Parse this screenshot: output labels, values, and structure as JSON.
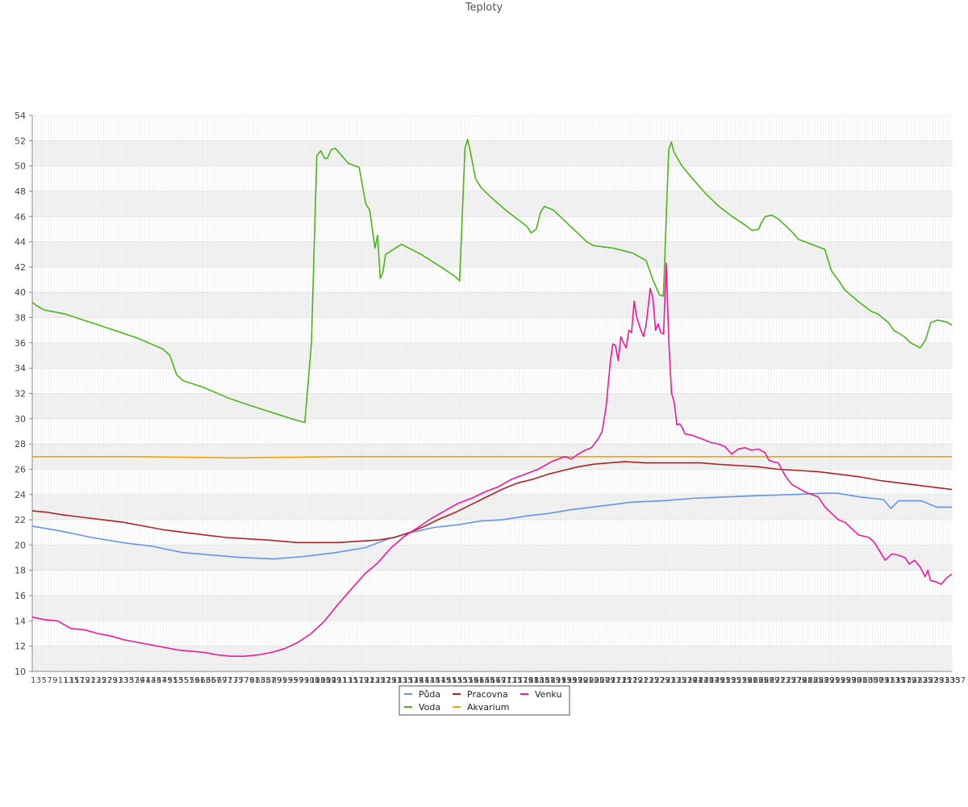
{
  "chart_data": {
    "type": "line",
    "title": "Teploty",
    "ylim": [
      10,
      54
    ],
    "yticks": [
      10,
      12,
      14,
      16,
      18,
      20,
      22,
      24,
      26,
      28,
      30,
      32,
      34,
      36,
      38,
      40,
      42,
      44,
      46,
      48,
      50,
      52,
      54
    ],
    "x": [
      1,
      337
    ],
    "x_tick_labels": "1 to 337 (sample index, all labels overlapping)",
    "grid": true,
    "legend_position": "bottom-center",
    "series": [
      {
        "name": "Půda",
        "color": "#6495ed",
        "points": [
          [
            1,
            21.5
          ],
          [
            20,
            21.1
          ],
          [
            40,
            20.6
          ],
          [
            60,
            20.2
          ],
          [
            80,
            19.9
          ],
          [
            100,
            19.4
          ],
          [
            120,
            19.2
          ],
          [
            140,
            19.0
          ],
          [
            160,
            18.9
          ],
          [
            180,
            19.1
          ],
          [
            200,
            19.4
          ],
          [
            220,
            19.8
          ],
          [
            235,
            20.5
          ],
          [
            250,
            21.0
          ],
          [
            265,
            21.4
          ],
          [
            280,
            21.6
          ],
          [
            295,
            21.9
          ],
          [
            310,
            22.0
          ],
          [
            325,
            22.3
          ],
          [
            340,
            22.5
          ],
          [
            355,
            22.8
          ],
          [
            375,
            23.1
          ],
          [
            395,
            23.4
          ],
          [
            415,
            23.5
          ],
          [
            435,
            23.7
          ],
          [
            455,
            23.8
          ],
          [
            475,
            23.9
          ],
          [
            500,
            24.0
          ],
          [
            520,
            24.1
          ],
          [
            530,
            24.1
          ],
          [
            545,
            23.8
          ],
          [
            560,
            23.6
          ],
          [
            565,
            22.9
          ],
          [
            570,
            23.5
          ],
          [
            585,
            23.5
          ],
          [
            595,
            23.0
          ],
          [
            605,
            23.0
          ]
        ]
      },
      {
        "name": "Voda",
        "color": "#4cb51a",
        "points": [
          [
            1,
            39.2
          ],
          [
            5,
            38.9
          ],
          [
            10,
            38.6
          ],
          [
            25,
            38.3
          ],
          [
            40,
            37.8
          ],
          [
            60,
            37.1
          ],
          [
            80,
            36.4
          ],
          [
            100,
            35.5
          ],
          [
            105,
            35.0
          ],
          [
            110,
            33.5
          ],
          [
            115,
            33.0
          ],
          [
            130,
            32.5
          ],
          [
            150,
            31.6
          ],
          [
            170,
            30.9
          ],
          [
            185,
            30.4
          ],
          [
            200,
            29.9
          ],
          [
            207,
            29.7
          ],
          [
            212,
            36.0
          ],
          [
            216,
            50.8
          ],
          [
            219,
            51.2
          ],
          [
            222,
            50.6
          ],
          [
            224,
            50.6
          ],
          [
            227,
            51.3
          ],
          [
            230,
            51.4
          ],
          [
            240,
            50.2
          ],
          [
            248,
            49.9
          ],
          [
            253,
            47.0
          ],
          [
            256,
            46.5
          ],
          [
            260,
            43.5
          ],
          [
            262,
            44.5
          ],
          [
            264,
            41.1
          ],
          [
            266,
            41.6
          ],
          [
            268,
            43.0
          ],
          [
            280,
            43.8
          ],
          [
            295,
            43.0
          ],
          [
            310,
            42.0
          ],
          [
            320,
            41.3
          ],
          [
            324,
            40.9
          ],
          [
            328,
            51.4
          ],
          [
            330,
            52.1
          ],
          [
            332,
            51.2
          ],
          [
            336,
            49.0
          ],
          [
            340,
            48.3
          ],
          [
            350,
            47.3
          ],
          [
            360,
            46.4
          ],
          [
            370,
            45.6
          ],
          [
            375,
            45.2
          ],
          [
            378,
            44.7
          ],
          [
            382,
            45.0
          ],
          [
            385,
            46.3
          ],
          [
            388,
            46.8
          ],
          [
            395,
            46.5
          ],
          [
            400,
            46.0
          ],
          [
            410,
            45.0
          ],
          [
            420,
            44.0
          ],
          [
            425,
            43.7
          ],
          [
            440,
            43.5
          ],
          [
            455,
            43.1
          ],
          [
            465,
            42.5
          ],
          [
            470,
            41.0
          ],
          [
            475,
            39.8
          ],
          [
            478,
            39.7
          ],
          [
            482,
            51.3
          ],
          [
            484,
            51.9
          ],
          [
            486,
            51.1
          ],
          [
            492,
            50.0
          ],
          [
            500,
            49.0
          ],
          [
            510,
            47.8
          ],
          [
            520,
            46.8
          ],
          [
            530,
            46.0
          ],
          [
            540,
            45.3
          ],
          [
            545,
            44.9
          ],
          [
            550,
            45.0
          ],
          [
            552,
            45.5
          ],
          [
            555,
            46.0
          ],
          [
            560,
            46.1
          ],
          [
            565,
            45.8
          ],
          [
            570,
            45.3
          ],
          [
            575,
            44.8
          ],
          [
            580,
            44.2
          ],
          [
            590,
            43.8
          ],
          [
            600,
            43.4
          ],
          [
            605,
            41.7
          ],
          [
            610,
            41.0
          ],
          [
            615,
            40.2
          ],
          [
            625,
            39.3
          ],
          [
            635,
            38.5
          ],
          [
            640,
            38.3
          ],
          [
            648,
            37.6
          ],
          [
            652,
            37.0
          ],
          [
            660,
            36.5
          ],
          [
            665,
            36.0
          ],
          [
            672,
            35.6
          ],
          [
            676,
            36.2
          ],
          [
            680,
            37.6
          ],
          [
            685,
            37.8
          ],
          [
            690,
            37.7
          ],
          [
            693,
            37.6
          ],
          [
            696,
            37.4
          ]
        ]
      },
      {
        "name": "Pracovna",
        "color": "#b22222",
        "points": [
          [
            1,
            22.7
          ],
          [
            15,
            22.6
          ],
          [
            30,
            22.4
          ],
          [
            50,
            22.2
          ],
          [
            70,
            22.0
          ],
          [
            90,
            21.8
          ],
          [
            110,
            21.5
          ],
          [
            130,
            21.2
          ],
          [
            150,
            21.0
          ],
          [
            170,
            20.8
          ],
          [
            190,
            20.6
          ],
          [
            210,
            20.5
          ],
          [
            230,
            20.4
          ],
          [
            245,
            20.3
          ],
          [
            260,
            20.2
          ],
          [
            280,
            20.2
          ],
          [
            300,
            20.2
          ],
          [
            320,
            20.3
          ],
          [
            340,
            20.4
          ],
          [
            355,
            20.6
          ],
          [
            370,
            21.0
          ],
          [
            385,
            21.5
          ],
          [
            400,
            22.1
          ],
          [
            415,
            22.6
          ],
          [
            430,
            23.2
          ],
          [
            445,
            23.8
          ],
          [
            460,
            24.4
          ],
          [
            475,
            24.9
          ],
          [
            490,
            25.2
          ],
          [
            505,
            25.6
          ],
          [
            520,
            25.9
          ],
          [
            535,
            26.2
          ],
          [
            550,
            26.4
          ],
          [
            565,
            26.5
          ],
          [
            580,
            26.6
          ],
          [
            600,
            26.5
          ],
          [
            620,
            26.5
          ],
          [
            640,
            26.5
          ],
          [
            655,
            26.5
          ],
          [
            670,
            26.4
          ],
          [
            690,
            26.3
          ],
          [
            710,
            26.2
          ],
          [
            730,
            26.0
          ],
          [
            750,
            25.9
          ],
          [
            770,
            25.8
          ],
          [
            790,
            25.6
          ],
          [
            810,
            25.4
          ],
          [
            830,
            25.1
          ],
          [
            850,
            24.9
          ],
          [
            870,
            24.7
          ],
          [
            890,
            24.5
          ],
          [
            900,
            24.4
          ]
        ]
      },
      {
        "name": "Akvarium",
        "color": "#f0a30a",
        "points": [
          [
            1,
            27.0
          ],
          [
            100,
            27.0
          ],
          [
            200,
            26.9
          ],
          [
            300,
            27.0
          ],
          [
            400,
            27.0
          ],
          [
            480,
            27.0
          ],
          [
            500,
            27.0
          ],
          [
            600,
            27.0
          ],
          [
            700,
            27.0
          ],
          [
            800,
            27.0
          ],
          [
            900,
            27.0
          ]
        ]
      },
      {
        "name": "Venku",
        "color": "#f0199a",
        "points": [
          [
            1,
            14.3
          ],
          [
            10,
            14.1
          ],
          [
            20,
            14.0
          ],
          [
            30,
            13.4
          ],
          [
            40,
            13.3
          ],
          [
            50,
            13.0
          ],
          [
            60,
            12.8
          ],
          [
            70,
            12.5
          ],
          [
            80,
            12.3
          ],
          [
            90,
            12.1
          ],
          [
            100,
            11.9
          ],
          [
            110,
            11.7
          ],
          [
            120,
            11.6
          ],
          [
            130,
            11.5
          ],
          [
            140,
            11.3
          ],
          [
            150,
            11.2
          ],
          [
            160,
            11.2
          ],
          [
            170,
            11.3
          ],
          [
            180,
            11.5
          ],
          [
            190,
            11.8
          ],
          [
            200,
            12.3
          ],
          [
            210,
            13.0
          ],
          [
            220,
            14.0
          ],
          [
            230,
            15.3
          ],
          [
            240,
            16.5
          ],
          [
            250,
            17.7
          ],
          [
            260,
            18.6
          ],
          [
            270,
            19.8
          ],
          [
            280,
            20.7
          ],
          [
            290,
            21.4
          ],
          [
            300,
            22.1
          ],
          [
            310,
            22.7
          ],
          [
            320,
            23.3
          ],
          [
            330,
            23.7
          ],
          [
            340,
            24.2
          ],
          [
            350,
            24.6
          ],
          [
            360,
            25.2
          ],
          [
            370,
            25.6
          ],
          [
            380,
            26.0
          ],
          [
            390,
            26.6
          ],
          [
            400,
            27.0
          ],
          [
            405,
            26.8
          ],
          [
            410,
            27.2
          ],
          [
            415,
            27.5
          ],
          [
            420,
            27.7
          ],
          [
            425,
            28.4
          ],
          [
            428,
            29.0
          ],
          [
            431,
            31.0
          ],
          [
            434,
            34.4
          ],
          [
            436,
            35.9
          ],
          [
            438,
            35.8
          ],
          [
            440,
            34.6
          ],
          [
            442,
            36.5
          ],
          [
            444,
            36.0
          ],
          [
            446,
            35.6
          ],
          [
            448,
            37.0
          ],
          [
            450,
            36.8
          ],
          [
            452,
            39.3
          ],
          [
            454,
            38.0
          ],
          [
            457,
            37.0
          ],
          [
            459,
            36.5
          ],
          [
            461,
            37.5
          ],
          [
            464,
            40.3
          ],
          [
            466,
            39.5
          ],
          [
            468,
            37.0
          ],
          [
            470,
            37.5
          ],
          [
            472,
            36.8
          ],
          [
            474,
            36.7
          ],
          [
            476,
            42.3
          ],
          [
            478,
            36.0
          ],
          [
            480,
            32.0
          ],
          [
            482,
            31.3
          ],
          [
            484,
            29.5
          ],
          [
            486,
            29.6
          ],
          [
            488,
            29.3
          ],
          [
            490,
            28.8
          ],
          [
            495,
            28.7
          ],
          [
            500,
            28.5
          ],
          [
            505,
            28.3
          ],
          [
            510,
            28.1
          ],
          [
            515,
            28.0
          ],
          [
            520,
            27.8
          ],
          [
            525,
            27.2
          ],
          [
            530,
            27.6
          ],
          [
            535,
            27.7
          ],
          [
            540,
            27.5
          ],
          [
            545,
            27.6
          ],
          [
            550,
            27.3
          ],
          [
            553,
            26.7
          ],
          [
            556,
            26.6
          ],
          [
            560,
            26.5
          ],
          [
            565,
            25.5
          ],
          [
            570,
            24.8
          ],
          [
            575,
            24.5
          ],
          [
            580,
            24.2
          ],
          [
            590,
            23.8
          ],
          [
            595,
            23.0
          ],
          [
            600,
            22.5
          ],
          [
            605,
            22.0
          ],
          [
            610,
            21.8
          ],
          [
            615,
            21.3
          ],
          [
            620,
            20.8
          ],
          [
            628,
            20.6
          ],
          [
            632,
            20.2
          ],
          [
            636,
            19.5
          ],
          [
            640,
            18.8
          ],
          [
            645,
            19.3
          ],
          [
            650,
            19.2
          ],
          [
            655,
            19.0
          ],
          [
            658,
            18.5
          ],
          [
            662,
            18.8
          ],
          [
            666,
            18.3
          ],
          [
            670,
            17.5
          ],
          [
            672,
            18.0
          ],
          [
            674,
            17.2
          ],
          [
            678,
            17.1
          ],
          [
            682,
            16.9
          ],
          [
            686,
            17.4
          ],
          [
            690,
            17.7
          ]
        ]
      }
    ]
  }
}
